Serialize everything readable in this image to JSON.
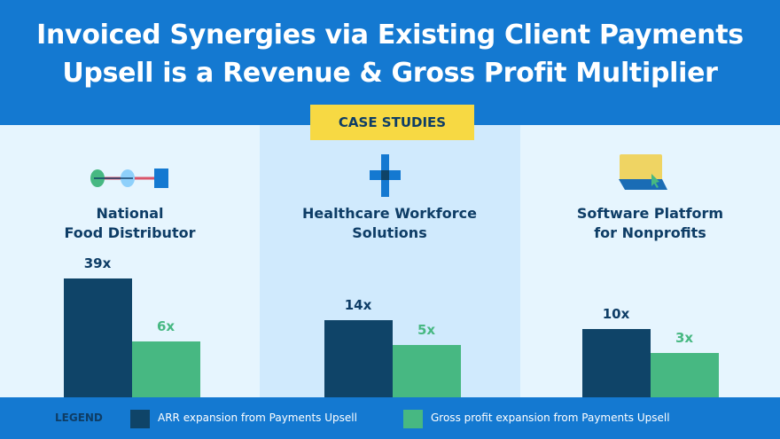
{
  "header": {
    "title_line1": "Invoiced Synergies via Existing Client Payments",
    "title_line2": "Upsell is a Revenue & Gross Profit Multiplier"
  },
  "badge": "CASE STUDIES",
  "colors": {
    "arr": "#0f4468",
    "gross_profit": "#47b882",
    "header": "#1479d1",
    "badge": "#f7d943"
  },
  "panels": [
    {
      "title_line1": "National",
      "title_line2": "Food Distributor",
      "icon": "supply-chain-icon"
    },
    {
      "title_line1": "Healthcare Workforce",
      "title_line2": "Solutions",
      "icon": "medical-cross-icon"
    },
    {
      "title_line1": "Software Platform",
      "title_line2": "for Nonprofits",
      "icon": "laptop-cursor-icon"
    }
  ],
  "chart_data": {
    "type": "bar",
    "categories": [
      "National Food Distributor",
      "Healthcare Workforce Solutions",
      "Software Platform for Nonprofits"
    ],
    "series": [
      {
        "name": "ARR expansion from Payments Upsell",
        "values": [
          39,
          14,
          10
        ],
        "labels": [
          "39x",
          "14x",
          "10x"
        ]
      },
      {
        "name": "Gross profit expansion from Payments Upsell",
        "values": [
          6,
          5,
          3
        ],
        "labels": [
          "6x",
          "5x",
          "3x"
        ]
      }
    ]
  },
  "legend": {
    "title": "LEGEND",
    "items": [
      "ARR expansion from Payments Upsell",
      "Gross profit expansion from Payments Upsell"
    ]
  }
}
